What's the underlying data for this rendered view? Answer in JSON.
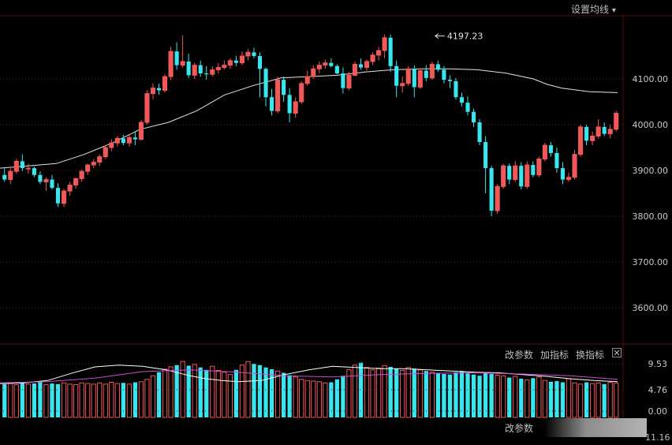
{
  "toolbar": {
    "ma_settings_label": "设置均线",
    "ma_settings_arrow": "▾"
  },
  "volume_panel": {
    "params_label": "改参数",
    "add_indicator_label": "加指标",
    "switch_indicator_label": "换指标",
    "close_label": "✕",
    "bottom_params_label": "改参数",
    "bottom_cut_value": "11.16"
  },
  "colors": {
    "up": "#f0585a",
    "down": "#37e6ee",
    "ma_line": "#e4e4e4",
    "vol_ma1": "#ffffff",
    "vol_ma2": "#d24ad6",
    "grid": "#7a1010",
    "axis_text": "#c8c8c8"
  },
  "chart_data": [
    {
      "type": "candlestick",
      "annotation": {
        "label": "4197.23",
        "value": 4197.23,
        "at_index": 72
      },
      "y_ticks": [
        "4100.00",
        "4000.00",
        "3900.00",
        "3800.00",
        "3700.00",
        "3600.00"
      ],
      "ylim": [
        3560,
        4250
      ],
      "ohlc": [
        [
          3890,
          3905,
          3875,
          3880
        ],
        [
          3880,
          3905,
          3870,
          3898
        ],
        [
          3898,
          3925,
          3893,
          3920
        ],
        [
          3920,
          3935,
          3898,
          3905
        ],
        [
          3905,
          3915,
          3893,
          3905
        ],
        [
          3905,
          3908,
          3885,
          3890
        ],
        [
          3890,
          3898,
          3870,
          3875
        ],
        [
          3875,
          3885,
          3855,
          3880
        ],
        [
          3880,
          3890,
          3858,
          3862
        ],
        [
          3862,
          3872,
          3820,
          3828
        ],
        [
          3828,
          3860,
          3820,
          3855
        ],
        [
          3855,
          3875,
          3845,
          3868
        ],
        [
          3868,
          3885,
          3860,
          3882
        ],
        [
          3882,
          3902,
          3875,
          3898
        ],
        [
          3898,
          3915,
          3890,
          3912
        ],
        [
          3912,
          3925,
          3905,
          3918
        ],
        [
          3918,
          3935,
          3910,
          3930
        ],
        [
          3930,
          3955,
          3925,
          3950
        ],
        [
          3950,
          3968,
          3942,
          3960
        ],
        [
          3960,
          3975,
          3952,
          3970
        ],
        [
          3970,
          3978,
          3955,
          3960
        ],
        [
          3960,
          3978,
          3952,
          3972
        ],
        [
          3972,
          3985,
          3955,
          3968
        ],
        [
          3968,
          4010,
          3965,
          4005
        ],
        [
          4005,
          4075,
          4000,
          4068
        ],
        [
          4068,
          4090,
          4055,
          4080
        ],
        [
          4080,
          4090,
          4065,
          4075
        ],
        [
          4075,
          4110,
          4070,
          4105
        ],
        [
          4105,
          4170,
          4098,
          4160
        ],
        [
          4160,
          4180,
          4120,
          4130
        ],
        [
          4130,
          4195,
          4125,
          4138
        ],
        [
          4138,
          4155,
          4102,
          4108
        ],
        [
          4108,
          4135,
          4100,
          4130
        ],
        [
          4130,
          4140,
          4105,
          4112
        ],
        [
          4112,
          4128,
          4098,
          4110
        ],
        [
          4110,
          4128,
          4105,
          4120
        ],
        [
          4120,
          4135,
          4112,
          4125
        ],
        [
          4125,
          4140,
          4120,
          4130
        ],
        [
          4130,
          4145,
          4122,
          4140
        ],
        [
          4140,
          4150,
          4128,
          4135
        ],
        [
          4135,
          4160,
          4130,
          4150
        ],
        [
          4150,
          4165,
          4140,
          4158
        ],
        [
          4158,
          4168,
          4145,
          4150
        ],
        [
          4150,
          4158,
          4060,
          4122
        ],
        [
          4122,
          4125,
          4040,
          4060
        ],
        [
          4060,
          4078,
          4020,
          4030
        ],
        [
          4030,
          4105,
          4025,
          4098
        ],
        [
          4098,
          4105,
          4050,
          4065
        ],
        [
          4065,
          4080,
          4005,
          4025
        ],
        [
          4025,
          4060,
          4015,
          4050
        ],
        [
          4050,
          4095,
          4045,
          4090
        ],
        [
          4090,
          4118,
          4085,
          4105
        ],
        [
          4105,
          4130,
          4100,
          4122
        ],
        [
          4122,
          4138,
          4112,
          4130
        ],
        [
          4130,
          4142,
          4122,
          4135
        ],
        [
          4135,
          4145,
          4125,
          4128
        ],
        [
          4128,
          4132,
          4110,
          4112
        ],
        [
          4112,
          4125,
          4068,
          4080
        ],
        [
          4080,
          4115,
          4075,
          4108
        ],
        [
          4108,
          4138,
          4105,
          4132
        ],
        [
          4132,
          4145,
          4120,
          4125
        ],
        [
          4125,
          4142,
          4118,
          4138
        ],
        [
          4138,
          4158,
          4130,
          4152
        ],
        [
          4152,
          4170,
          4140,
          4162
        ],
        [
          4162,
          4197,
          4145,
          4190
        ],
        [
          4190,
          4197,
          4115,
          4128
        ],
        [
          4128,
          4140,
          4060,
          4085
        ],
        [
          4085,
          4105,
          4070,
          4090
        ],
        [
          4090,
          4128,
          4085,
          4122
        ],
        [
          4122,
          4130,
          4060,
          4082
        ],
        [
          4082,
          4120,
          4078,
          4118
        ],
        [
          4118,
          4130,
          4095,
          4102
        ],
        [
          4102,
          4138,
          4098,
          4132
        ],
        [
          4132,
          4140,
          4115,
          4120
        ],
        [
          4120,
          4128,
          4090,
          4098
        ],
        [
          4098,
          4108,
          4080,
          4095
        ],
        [
          4095,
          4102,
          4055,
          4060
        ],
        [
          4060,
          4070,
          4040,
          4048
        ],
        [
          4048,
          4062,
          4020,
          4028
        ],
        [
          4028,
          4035,
          3995,
          4005
        ],
        [
          4005,
          4012,
          3955,
          3962
        ],
        [
          3962,
          3975,
          3850,
          3905
        ],
        [
          3905,
          3910,
          3800,
          3812
        ],
        [
          3812,
          3870,
          3805,
          3865
        ],
        [
          3865,
          3915,
          3860,
          3910
        ],
        [
          3910,
          3915,
          3870,
          3880
        ],
        [
          3880,
          3920,
          3875,
          3910
        ],
        [
          3910,
          3918,
          3858,
          3865
        ],
        [
          3865,
          3920,
          3860,
          3912
        ],
        [
          3912,
          3920,
          3885,
          3890
        ],
        [
          3890,
          3930,
          3885,
          3925
        ],
        [
          3925,
          3960,
          3920,
          3955
        ],
        [
          3955,
          3962,
          3930,
          3938
        ],
        [
          3938,
          3950,
          3895,
          3905
        ],
        [
          3905,
          3918,
          3870,
          3880
        ],
        [
          3880,
          3895,
          3875,
          3885
        ],
        [
          3885,
          3945,
          3880,
          3935
        ],
        [
          3935,
          4000,
          3930,
          3995
        ],
        [
          3995,
          4000,
          3955,
          3965
        ],
        [
          3965,
          3985,
          3955,
          3975
        ],
        [
          3975,
          4012,
          3970,
          3995
        ],
        [
          3995,
          4005,
          3975,
          3980
        ],
        [
          3980,
          4000,
          3970,
          3990
        ],
        [
          3990,
          4030,
          3985,
          4025
        ]
      ],
      "ma": [
        [
          0,
          3905
        ],
        [
          10,
          3910
        ],
        [
          20,
          3915
        ],
        [
          30,
          3935
        ],
        [
          40,
          3960
        ],
        [
          50,
          3990
        ],
        [
          60,
          4005
        ],
        [
          70,
          4030
        ],
        [
          80,
          4065
        ],
        [
          90,
          4085
        ],
        [
          100,
          4102
        ],
        [
          110,
          4105
        ],
        [
          120,
          4108
        ],
        [
          130,
          4115
        ],
        [
          140,
          4120
        ],
        [
          150,
          4122
        ],
        [
          160,
          4122
        ],
        [
          170,
          4120
        ],
        [
          180,
          4113
        ],
        [
          190,
          4100
        ],
        [
          195,
          4088
        ],
        [
          200,
          4080
        ],
        [
          210,
          4072
        ],
        [
          220,
          4070
        ]
      ]
    },
    {
      "type": "bar",
      "series_role": "volume",
      "y_ticks": [
        "9.53",
        "4.76",
        "0.00"
      ],
      "ylim": [
        0,
        11
      ],
      "values": [
        5.6,
        5.7,
        5.5,
        5.8,
        5.6,
        5.7,
        5.9,
        5.5,
        5.7,
        5.6,
        5.8,
        5.6,
        5.5,
        5.8,
        5.7,
        5.6,
        5.8,
        5.6,
        5.9,
        5.7,
        5.8,
        5.6,
        5.9,
        6.0,
        6.4,
        7.0,
        7.6,
        8.1,
        8.5,
        8.8,
        9.4,
        8.7,
        8.9,
        8.4,
        8.0,
        8.6,
        7.9,
        7.6,
        7.2,
        8.0,
        8.8,
        9.4,
        9.0,
        8.8,
        8.4,
        8.1,
        7.8,
        7.5,
        7.1,
        6.8,
        6.4,
        6.2,
        6.1,
        6.0,
        5.8,
        5.9,
        6.4,
        7.0,
        8.0,
        8.8,
        9.2,
        8.4,
        8.0,
        8.3,
        8.7,
        8.5,
        8.2,
        7.9,
        8.4,
        8.2,
        8.0,
        7.8,
        7.6,
        7.5,
        7.3,
        7.2,
        7.6,
        7.8,
        7.4,
        7.2,
        7.0,
        7.5,
        7.3,
        7.1,
        7.0,
        6.7,
        6.9,
        6.5,
        6.3,
        6.6,
        6.8,
        6.2,
        6.0,
        6.1,
        5.9,
        6.5,
        5.8,
        5.6,
        5.9,
        5.7,
        5.8,
        5.6,
        5.9,
        5.8
      ],
      "ma1": [
        [
          0,
          5.7
        ],
        [
          30,
          5.8
        ],
        [
          60,
          6.2
        ],
        [
          90,
          7.4
        ],
        [
          120,
          8.5
        ],
        [
          150,
          8.8
        ],
        [
          180,
          8.6
        ],
        [
          210,
          8.0
        ],
        [
          240,
          7.0
        ],
        [
          260,
          6.5
        ],
        [
          280,
          6.2
        ],
        [
          300,
          6.0
        ],
        [
          330,
          6.2
        ],
        [
          360,
          7.2
        ],
        [
          390,
          8.0
        ],
        [
          420,
          8.6
        ],
        [
          450,
          8.4
        ],
        [
          480,
          8.2
        ],
        [
          510,
          8.2
        ],
        [
          540,
          8.0
        ],
        [
          570,
          7.8
        ],
        [
          600,
          7.6
        ],
        [
          630,
          7.5
        ],
        [
          660,
          7.2
        ],
        [
          690,
          6.9
        ],
        [
          720,
          6.5
        ],
        [
          750,
          6.2
        ],
        [
          780,
          6.0
        ]
      ],
      "ma2": [
        [
          0,
          5.8
        ],
        [
          60,
          6.0
        ],
        [
          120,
          6.6
        ],
        [
          180,
          7.7
        ],
        [
          240,
          8.0
        ],
        [
          300,
          7.6
        ],
        [
          360,
          7.0
        ],
        [
          420,
          6.8
        ],
        [
          480,
          7.2
        ],
        [
          540,
          7.4
        ],
        [
          600,
          7.5
        ],
        [
          660,
          7.3
        ],
        [
          720,
          7.0
        ],
        [
          780,
          6.4
        ]
      ]
    }
  ]
}
